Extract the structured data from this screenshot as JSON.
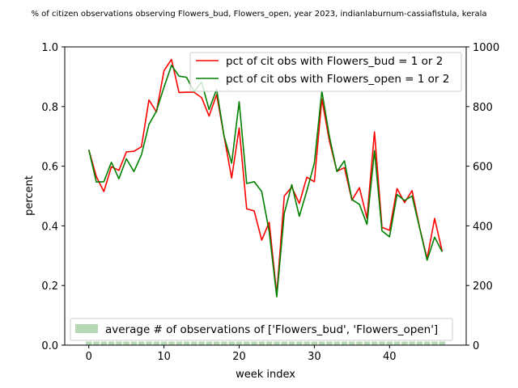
{
  "chart_data": {
    "type": "line",
    "title": "% of citizen observations observing Flowers_bud, Flowers_open, year 2023, indianlaburnum-cassiafistula, kerala",
    "xlabel": "week index",
    "ylabel": "percent",
    "xlim": [
      -3.2,
      50.2
    ],
    "ylim": [
      0,
      1.0
    ],
    "y2lim": [
      0,
      1000
    ],
    "x_ticks": [
      "0",
      "10",
      "20",
      "30",
      "40"
    ],
    "y_ticks": [
      "0.0",
      "0.2",
      "0.4",
      "0.6",
      "0.8",
      "1.0"
    ],
    "y2_ticks": [
      "0",
      "200",
      "400",
      "600",
      "800",
      "1000"
    ],
    "legend_placement": "upper-right",
    "legend2_placement": "lower-left",
    "x": [
      0,
      1,
      2,
      3,
      4,
      5,
      6,
      7,
      8,
      9,
      10,
      11,
      12,
      13,
      14,
      15,
      16,
      17,
      18,
      19,
      20,
      21,
      22,
      23,
      24,
      25,
      26,
      27,
      28,
      29,
      30,
      31,
      32,
      33,
      34,
      35,
      36,
      37,
      38,
      39,
      40,
      41,
      42,
      43,
      44,
      45,
      46,
      47
    ],
    "series": [
      {
        "name": "pct of cit obs with Flowers_bud = 1 or 2",
        "color": "#ff0000",
        "values": [
          0.655,
          0.565,
          0.515,
          0.598,
          0.586,
          0.648,
          0.65,
          0.665,
          0.822,
          0.782,
          0.92,
          0.958,
          0.847,
          0.848,
          0.848,
          0.83,
          0.768,
          0.84,
          0.7,
          0.56,
          0.728,
          0.457,
          0.45,
          0.352,
          0.412,
          0.17,
          0.5,
          0.53,
          0.475,
          0.563,
          0.548,
          0.825,
          0.685,
          0.583,
          0.595,
          0.486,
          0.528,
          0.425,
          0.715,
          0.395,
          0.385,
          0.525,
          0.478,
          0.518,
          0.395,
          0.29,
          0.425,
          0.315
        ]
      },
      {
        "name": "pct of cit obs with Flowers_open = 1 or 2",
        "color": "#008000",
        "values": [
          0.655,
          0.547,
          0.548,
          0.613,
          0.558,
          0.625,
          0.582,
          0.638,
          0.74,
          0.785,
          0.865,
          0.938,
          0.902,
          0.898,
          0.85,
          0.882,
          0.79,
          0.858,
          0.7,
          0.61,
          0.816,
          0.542,
          0.548,
          0.515,
          0.38,
          0.162,
          0.442,
          0.538,
          0.432,
          0.517,
          0.61,
          0.852,
          0.7,
          0.582,
          0.618,
          0.488,
          0.472,
          0.405,
          0.652,
          0.383,
          0.363,
          0.505,
          0.485,
          0.5,
          0.393,
          0.285,
          0.362,
          0.313
        ]
      }
    ],
    "bar_series": {
      "name": "average # of observations of ['Flowers_bud', 'Flowers_open']",
      "color": "#b5d9b5",
      "axis": "right",
      "values": [
        12,
        12,
        12,
        12,
        12,
        12,
        12,
        12,
        12,
        12,
        12,
        12,
        12,
        12,
        12,
        12,
        12,
        12,
        12,
        12,
        12,
        12,
        12,
        12,
        12,
        12,
        12,
        12,
        12,
        12,
        12,
        12,
        12,
        12,
        12,
        12,
        12,
        12,
        12,
        12,
        12,
        12,
        12,
        12,
        12,
        12,
        12,
        12
      ]
    }
  }
}
